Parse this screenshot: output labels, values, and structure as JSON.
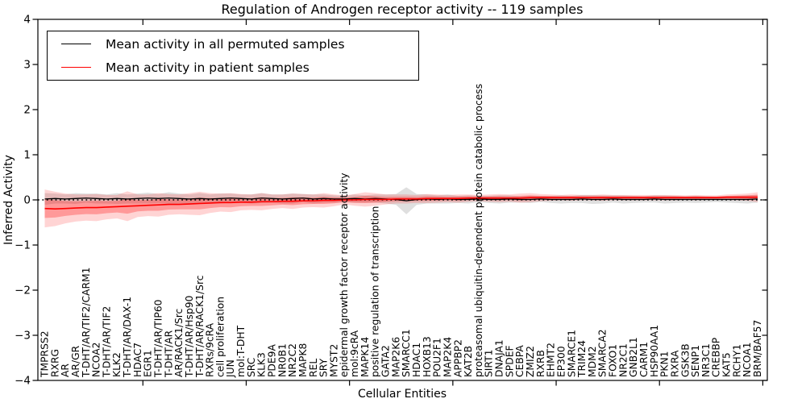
{
  "figure": {
    "title": "Regulation of Androgen receptor activity -- 119 samples",
    "xlabel": "Cellular Entities",
    "ylabel": "Inferred Activity"
  },
  "legend": {
    "items": [
      {
        "label": "Mean activity in all permuted samples",
        "color": "#000000"
      },
      {
        "label": "Mean activity in patient samples",
        "color": "#ff0000"
      }
    ]
  },
  "chart_data": {
    "type": "line",
    "title": "Regulation of Androgen receptor activity -- 119 samples",
    "xlabel": "Cellular Entities",
    "ylabel": "Inferred Activity",
    "ylim": [
      -4,
      4
    ],
    "yticks": [
      "−4",
      "−3",
      "−2",
      "−1",
      "0",
      "1",
      "2",
      "3",
      "4"
    ],
    "x_tick_interval": 10,
    "grid": false,
    "legend_position": "upper left",
    "zero_line": {
      "style": "dotted",
      "color": "#000000",
      "y": 0
    },
    "categories": [
      "TMPRSS2",
      "RXRG",
      "AR",
      "AR/GR",
      "T-DHT/AR/TIF2/CARM1",
      "NCOA2",
      "T-DHT/AR/TIF2",
      "KLK2",
      "T-DHT/AR/DAX-1",
      "HDAC7",
      "EGR1",
      "T-DHT/AR/TIP60",
      "T-DHT/AR",
      "AR/RACK1/Src",
      "T-DHT/AR/Hsp90",
      "T-DHT/AR/RACK1/Src",
      "RXRs/9cRA",
      "cell proliferation",
      "JUN",
      "mol:T-DHT",
      "SRC",
      "KLK3",
      "PDE9A",
      "NR0B1",
      "NR2C2",
      "MAPK8",
      "REL",
      "SRY",
      "MYST2",
      "epidermal growth factor receptor activity",
      "mol:9cRA",
      "MAPK14",
      "positive regulation of transcription",
      "GATA2",
      "MAP2K6",
      "SMARCC1",
      "HDAC1",
      "HOXB13",
      "POU2F1",
      "MAP2K4",
      "APPBP2",
      "KAT2B",
      "proteasomal ubiquitin-dependent protein catabolic process",
      "SIRT1",
      "DNAJA1",
      "SPDEF",
      "CEBPA",
      "ZMIZ2",
      "RXRB",
      "EHMT2",
      "EP300",
      "SMARCE1",
      "TRIM24",
      "MDM2",
      "SMARCA2",
      "FOXO1",
      "NR2C1",
      "GNB2L1",
      "CARM1",
      "HSP90AA1",
      "PKN1",
      "RXRA",
      "GSK3B",
      "SENP1",
      "NR3C1",
      "CREBBP",
      "KAT5",
      "RCHY1",
      "NCOA1",
      "BRM/BAF57"
    ],
    "series": [
      {
        "name": "Mean activity in all permuted samples",
        "color": "#000000",
        "line_style": "solid",
        "band_color": "#aaaaaa",
        "values": [
          0.02,
          0.03,
          0.02,
          0.03,
          0.04,
          0.03,
          0.02,
          0.03,
          0.02,
          0.03,
          0.04,
          0.03,
          0.04,
          0.03,
          0.02,
          0.03,
          0.02,
          0.03,
          0.04,
          0.03,
          0.02,
          0.04,
          0.03,
          0.02,
          0.03,
          0.04,
          0.02,
          0.03,
          0.02,
          0.02,
          0.03,
          0.02,
          0.03,
          0.02,
          0.01,
          -0.02,
          0.01,
          0.02,
          0.01,
          0.02,
          0.01,
          0.01,
          0.02,
          0.01,
          0.01,
          0.02,
          0.01,
          0.01,
          0.02,
          0.01,
          0.01,
          0.01,
          0.02,
          0.01,
          0.01,
          0.02,
          0.01,
          0.01,
          0.01,
          0.02,
          0.01,
          0.01,
          0.01,
          0.01,
          0.01,
          0.01,
          0.01,
          0.01,
          0.01,
          0.02
        ],
        "band_half_width": [
          0.13,
          0.11,
          0.1,
          0.12,
          0.1,
          0.11,
          0.1,
          0.12,
          0.1,
          0.11,
          0.12,
          0.1,
          0.13,
          0.11,
          0.1,
          0.12,
          0.1,
          0.11,
          0.1,
          0.09,
          0.1,
          0.11,
          0.09,
          0.1,
          0.11,
          0.09,
          0.1,
          0.09,
          0.08,
          0.07,
          0.09,
          0.08,
          0.09,
          0.1,
          0.12,
          0.3,
          0.12,
          0.1,
          0.09,
          0.1,
          0.08,
          0.09,
          0.07,
          0.08,
          0.09,
          0.08,
          0.07,
          0.08,
          0.07,
          0.08,
          0.09,
          0.08,
          0.09,
          0.1,
          0.09,
          0.08,
          0.09,
          0.08,
          0.07,
          0.08,
          0.09,
          0.08,
          0.07,
          0.08,
          0.07,
          0.06,
          0.07,
          0.08,
          0.09,
          0.08
        ]
      },
      {
        "name": "Mean activity in patient samples",
        "color": "#ff0000",
        "line_style": "solid",
        "band_color": "#ff0000",
        "values": [
          -0.19,
          -0.2,
          -0.19,
          -0.18,
          -0.17,
          -0.17,
          -0.16,
          -0.15,
          -0.14,
          -0.13,
          -0.12,
          -0.11,
          -0.1,
          -0.1,
          -0.09,
          -0.08,
          -0.07,
          -0.06,
          -0.06,
          -0.05,
          -0.05,
          -0.04,
          -0.04,
          -0.03,
          -0.03,
          -0.02,
          -0.02,
          -0.01,
          -0.01,
          0.0,
          0.0,
          0.01,
          0.01,
          0.01,
          0.02,
          0.02,
          0.02,
          0.03,
          0.03,
          0.03,
          0.03,
          0.04,
          0.04,
          0.04,
          0.04,
          0.04,
          0.04,
          0.05,
          0.05,
          0.05,
          0.05,
          0.05,
          0.05,
          0.05,
          0.05,
          0.05,
          0.05,
          0.05,
          0.05,
          0.05,
          0.05,
          0.05,
          0.05,
          0.05,
          0.05,
          0.05,
          0.06,
          0.06,
          0.06,
          0.06
        ],
        "band_half_width": [
          0.42,
          0.38,
          0.33,
          0.3,
          0.29,
          0.3,
          0.27,
          0.26,
          0.33,
          0.25,
          0.24,
          0.26,
          0.23,
          0.22,
          0.24,
          0.26,
          0.22,
          0.2,
          0.21,
          0.18,
          0.17,
          0.19,
          0.16,
          0.15,
          0.17,
          0.15,
          0.14,
          0.16,
          0.13,
          0.1,
          0.13,
          0.16,
          0.14,
          0.11,
          0.1,
          0.1,
          0.09,
          0.1,
          0.09,
          0.08,
          0.09,
          0.08,
          0.07,
          0.08,
          0.09,
          0.08,
          0.1,
          0.1,
          0.08,
          0.07,
          0.06,
          0.07,
          0.06,
          0.06,
          0.07,
          0.06,
          0.06,
          0.06,
          0.06,
          0.06,
          0.06,
          0.06,
          0.05,
          0.06,
          0.05,
          0.05,
          0.06,
          0.07,
          0.08,
          0.11
        ]
      }
    ]
  }
}
